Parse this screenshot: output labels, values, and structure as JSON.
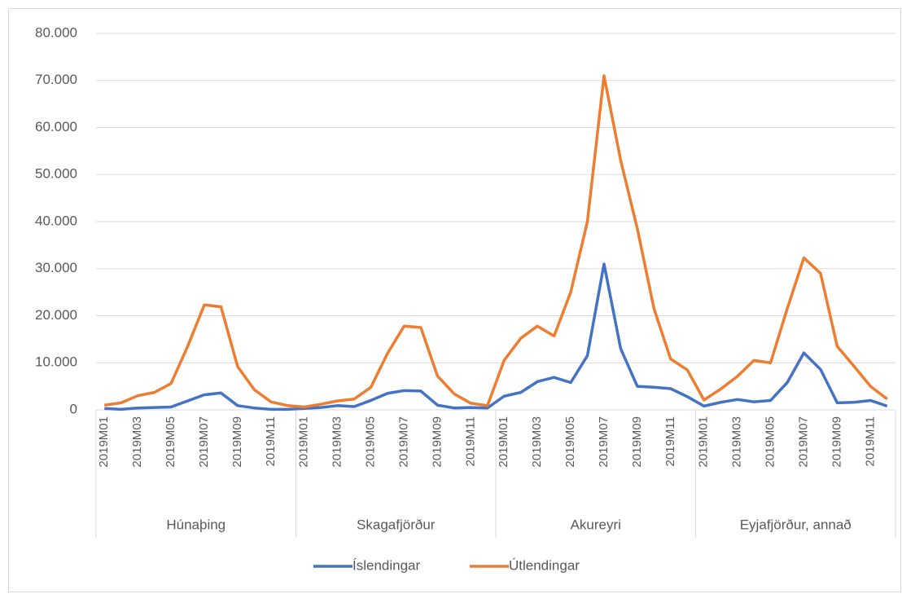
{
  "chart_data": {
    "type": "line",
    "categories": [
      "2019M01",
      null,
      "2019M03",
      null,
      "2019M05",
      null,
      "2019M07",
      null,
      "2019M09",
      null,
      "2019M11",
      null,
      "2019M01",
      null,
      "2019M03",
      null,
      "2019M05",
      null,
      "2019M07",
      null,
      "2019M09",
      null,
      "2019M11",
      null,
      "2019M01",
      null,
      "2019M03",
      null,
      "2019M05",
      null,
      "2019M07",
      null,
      "2019M09",
      null,
      "2019M11",
      null,
      "2019M01",
      null,
      "2019M03",
      null,
      "2019M05",
      null,
      "2019M07",
      null,
      "2019M09",
      null,
      "2019M11",
      null
    ],
    "groups": [
      "Húnaþing",
      "Skagafjörður",
      "Akureyri",
      "Eyjafjörður, annað"
    ],
    "series": [
      {
        "name": "Íslendingar",
        "color": "#4472c4",
        "values": [
          300,
          100,
          400,
          500,
          600,
          1900,
          3200,
          3600,
          900,
          400,
          100,
          100,
          300,
          500,
          900,
          700,
          2000,
          3500,
          4100,
          4000,
          1000,
          400,
          500,
          400,
          2900,
          3700,
          6000,
          6900,
          5800,
          11500,
          31000,
          13000,
          5000,
          4800,
          4500,
          2800,
          800,
          1600,
          2200,
          1700,
          2000,
          5800,
          12100,
          8600,
          1500,
          1600,
          2000,
          800
        ]
      },
      {
        "name": "Útlendingar",
        "color": "#ed7d31",
        "values": [
          1000,
          1500,
          3000,
          3700,
          5600,
          13500,
          22300,
          21900,
          9200,
          4300,
          1700,
          900,
          600,
          1200,
          1900,
          2300,
          4800,
          12000,
          17800,
          17500,
          7200,
          3400,
          1400,
          900,
          10500,
          15200,
          17800,
          15700,
          25000,
          40000,
          71000,
          53000,
          38500,
          21500,
          10800,
          8500,
          2100,
          4400,
          7100,
          10500,
          10000,
          21500,
          32300,
          29000,
          13500,
          9300,
          5000,
          2300
        ]
      }
    ],
    "ylim": [
      0,
      80000
    ],
    "yticks": [
      0,
      {
        "value": 10000,
        "label": "10.000"
      },
      {
        "value": 20000,
        "label": "20.000"
      },
      {
        "value": 30000,
        "label": "30.000"
      },
      {
        "value": 40000,
        "label": "40.000"
      },
      {
        "value": 50000,
        "label": "50.000"
      },
      {
        "value": 60000,
        "label": "60.000"
      },
      {
        "value": 70000,
        "label": "70.000"
      },
      {
        "value": 80000,
        "label": "80.000"
      }
    ],
    "grid": true,
    "legend": "bottom"
  }
}
